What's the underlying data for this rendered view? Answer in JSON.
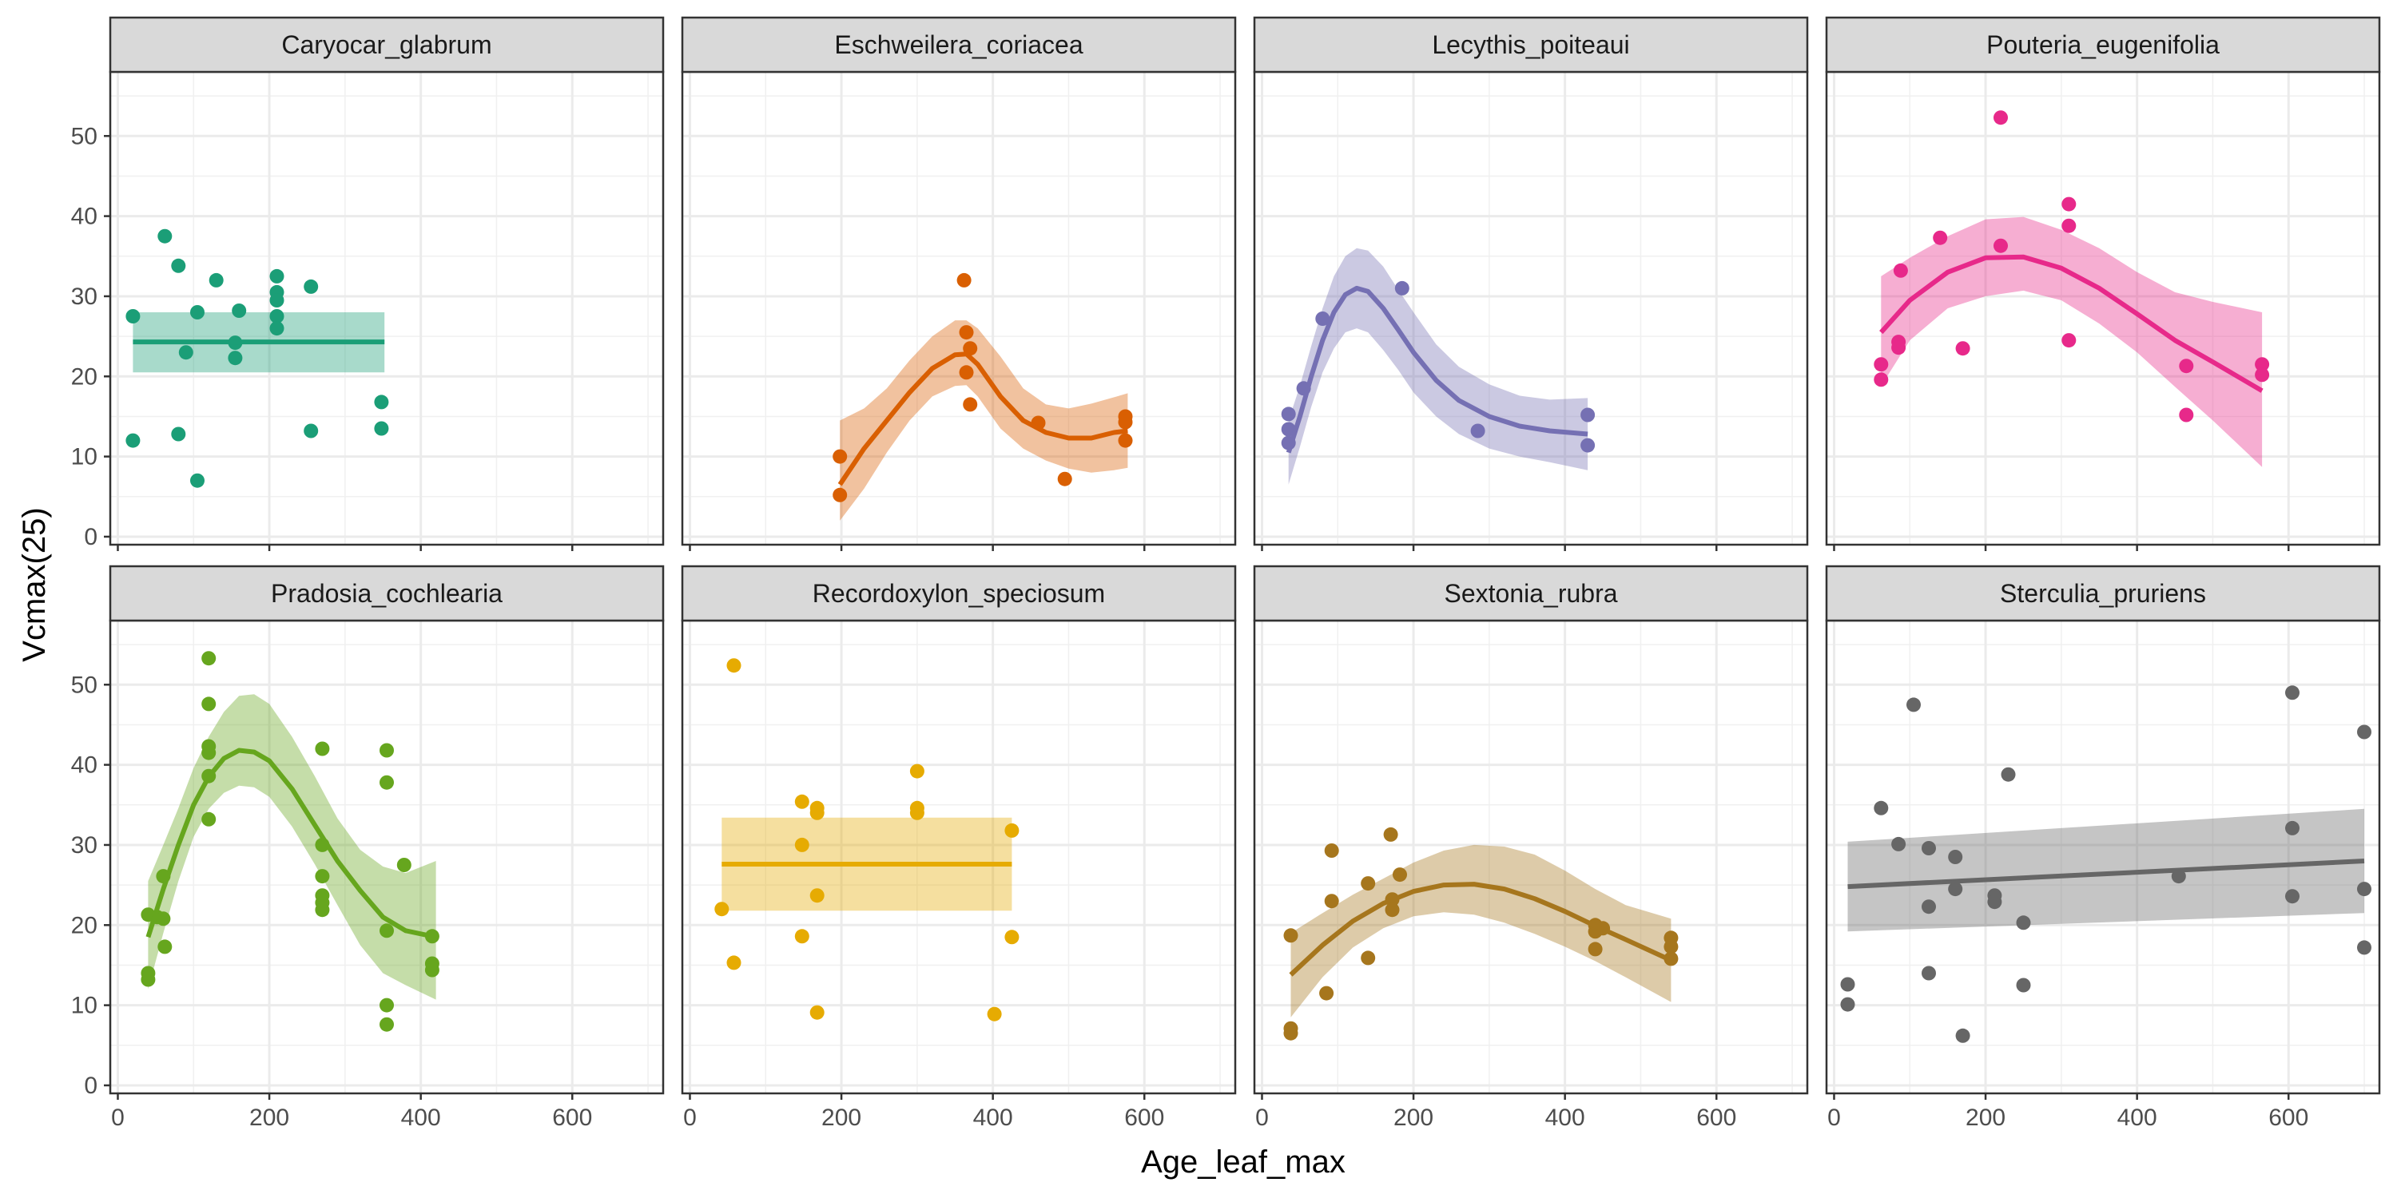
{
  "chart_data": {
    "type": "scatter",
    "layout": "facet_wrap 2x4",
    "xlabel": "Age_leaf_max",
    "ylabel": "Vcmax(25)",
    "xlim": [
      -10,
      720
    ],
    "ylim": [
      -1,
      58
    ],
    "x_ticks": [
      0,
      200,
      400,
      600
    ],
    "y_ticks": [
      0,
      10,
      20,
      30,
      40,
      50
    ],
    "grid": true,
    "legend": "none",
    "panels": [
      {
        "name": "Caryocar_glabrum",
        "color": "#1B9E77",
        "points": [
          [
            20,
            27.5
          ],
          [
            20,
            12
          ],
          [
            62,
            37.5
          ],
          [
            80,
            33.8
          ],
          [
            80,
            12.8
          ],
          [
            90,
            23
          ],
          [
            105,
            7
          ],
          [
            105,
            28
          ],
          [
            130,
            32
          ],
          [
            155,
            22.3
          ],
          [
            155,
            24.2
          ],
          [
            160,
            28.2
          ],
          [
            210,
            32.5
          ],
          [
            210,
            30.5
          ],
          [
            210,
            29.5
          ],
          [
            210,
            27.5
          ],
          [
            210,
            26
          ],
          [
            255,
            31.2
          ],
          [
            255,
            13.2
          ],
          [
            348,
            16.8
          ],
          [
            348,
            13.5
          ]
        ],
        "smooth": {
          "kind": "flat",
          "x": [
            20,
            352
          ],
          "y": [
            24.3,
            24.3
          ],
          "lo": [
            20.5,
            20.5
          ],
          "hi": [
            28,
            28
          ]
        }
      },
      {
        "name": "Eschweilera_coriacea",
        "color": "#D95F02",
        "points": [
          [
            198,
            10
          ],
          [
            198,
            5.2
          ],
          [
            362,
            32
          ],
          [
            365,
            25.5
          ],
          [
            365,
            20.5
          ],
          [
            370,
            23.5
          ],
          [
            370,
            16.5
          ],
          [
            460,
            14.2
          ],
          [
            495,
            7.2
          ],
          [
            575,
            15
          ],
          [
            575,
            14.3
          ],
          [
            575,
            12
          ]
        ],
        "smooth": {
          "kind": "curve",
          "x": [
            198,
            230,
            260,
            290,
            320,
            350,
            365,
            380,
            410,
            440,
            470,
            500,
            530,
            560,
            578
          ],
          "y": [
            6.5,
            11,
            14.5,
            18,
            21,
            22.7,
            22.8,
            21.5,
            17.5,
            14.5,
            13,
            12.3,
            12.3,
            13,
            13.2
          ],
          "lo": [
            2,
            6,
            10.5,
            14.5,
            17.5,
            18.8,
            18.9,
            17.5,
            13.5,
            11,
            9.5,
            8.5,
            8,
            8.3,
            8.6
          ],
          "hi": [
            14.5,
            16,
            18.5,
            22,
            25,
            27,
            27,
            26,
            22.5,
            18.5,
            16.5,
            16,
            16.6,
            17.4,
            17.9
          ]
        }
      },
      {
        "name": "Lecythis_poiteaui",
        "color": "#7570B3",
        "points": [
          [
            35,
            15.3
          ],
          [
            35,
            13.4
          ],
          [
            35,
            11.7
          ],
          [
            55,
            18.5
          ],
          [
            80,
            27.2
          ],
          [
            185,
            31
          ],
          [
            285,
            13.2
          ],
          [
            430,
            15.2
          ],
          [
            430,
            11.4
          ]
        ],
        "smooth": {
          "kind": "curve",
          "x": [
            35,
            50,
            65,
            80,
            95,
            110,
            125,
            140,
            160,
            180,
            200,
            230,
            260,
            300,
            340,
            380,
            430
          ],
          "y": [
            10.5,
            15,
            20,
            24.5,
            28,
            30.2,
            31,
            30.6,
            28.5,
            25.8,
            23,
            19.5,
            17,
            15,
            13.8,
            13.2,
            12.8
          ],
          "lo": [
            6.5,
            11.2,
            16.2,
            20.5,
            23.5,
            25.5,
            26,
            25.5,
            23.3,
            20.8,
            18,
            15,
            12.8,
            11,
            10,
            9.3,
            8.3
          ],
          "hi": [
            14.5,
            18.8,
            23.8,
            28.5,
            32.5,
            35,
            36,
            35.7,
            33.7,
            30.8,
            28,
            24,
            21.2,
            19,
            17.6,
            17.1,
            17.3
          ]
        }
      },
      {
        "name": "Pouteria_eugenifolia",
        "color": "#E7298A",
        "points": [
          [
            62,
            21.5
          ],
          [
            62,
            19.6
          ],
          [
            85,
            24.3
          ],
          [
            85,
            23.6
          ],
          [
            88,
            33.2
          ],
          [
            140,
            37.3
          ],
          [
            170,
            23.5
          ],
          [
            220,
            52.3
          ],
          [
            220,
            36.3
          ],
          [
            310,
            41.5
          ],
          [
            310,
            38.8
          ],
          [
            310,
            24.5
          ],
          [
            465,
            21.3
          ],
          [
            465,
            15.2
          ],
          [
            565,
            21.5
          ],
          [
            565,
            20.2
          ]
        ],
        "smooth": {
          "kind": "curve",
          "x": [
            62,
            100,
            150,
            200,
            250,
            300,
            350,
            400,
            450,
            500,
            565
          ],
          "y": [
            25.5,
            29.5,
            33,
            34.8,
            34.9,
            33.5,
            31,
            27.8,
            24.5,
            21.8,
            18.2
          ],
          "lo": [
            18.8,
            24.5,
            28.5,
            30,
            30.7,
            29.5,
            26.6,
            23,
            18.7,
            14.5,
            8.7
          ],
          "hi": [
            32.5,
            34.8,
            37.5,
            39.6,
            39.9,
            38.3,
            36,
            33,
            30.5,
            29.3,
            28
          ]
        }
      },
      {
        "name": "Pradosia_cochlearia",
        "color": "#66A61E",
        "points": [
          [
            40,
            21.3
          ],
          [
            40,
            14
          ],
          [
            40,
            13.2
          ],
          [
            52,
            21
          ],
          [
            60,
            26.1
          ],
          [
            60,
            20.8
          ],
          [
            62,
            17.3
          ],
          [
            120,
            53.3
          ],
          [
            120,
            47.6
          ],
          [
            120,
            42.3
          ],
          [
            120,
            41.5
          ],
          [
            120,
            38.6
          ],
          [
            120,
            33.2
          ],
          [
            270,
            42
          ],
          [
            270,
            30
          ],
          [
            270,
            26.1
          ],
          [
            270,
            23.7
          ],
          [
            270,
            22.8
          ],
          [
            270,
            21.9
          ],
          [
            355,
            41.8
          ],
          [
            355,
            37.8
          ],
          [
            355,
            19.3
          ],
          [
            355,
            10
          ],
          [
            355,
            7.6
          ],
          [
            378,
            27.5
          ],
          [
            415,
            18.6
          ],
          [
            415,
            15.2
          ],
          [
            415,
            14.4
          ]
        ],
        "smooth": {
          "kind": "curve",
          "x": [
            40,
            60,
            80,
            100,
            120,
            140,
            160,
            180,
            200,
            230,
            260,
            290,
            320,
            350,
            380,
            420
          ],
          "y": [
            18.5,
            24.5,
            30,
            35,
            38.5,
            40.8,
            41.8,
            41.6,
            40.5,
            37,
            32.5,
            28,
            24.3,
            21,
            19.3,
            18.5
          ],
          "lo": [
            12,
            19,
            25.5,
            31,
            34.5,
            36.5,
            37.4,
            37.2,
            36,
            32.3,
            27.6,
            22.5,
            17.5,
            14,
            12.5,
            10.7
          ],
          "hi": [
            25.5,
            30,
            34.6,
            39.6,
            43.5,
            46.6,
            48.6,
            48.8,
            47.6,
            43.5,
            38.6,
            33.3,
            29.4,
            27.3,
            26.5,
            28
          ]
        }
      },
      {
        "name": "Recordoxylon_speciosum",
        "color": "#E6AB02",
        "points": [
          [
            42,
            22
          ],
          [
            58,
            52.4
          ],
          [
            58,
            15.3
          ],
          [
            148,
            35.4
          ],
          [
            148,
            30
          ],
          [
            148,
            18.6
          ],
          [
            168,
            34.6
          ],
          [
            168,
            34
          ],
          [
            168,
            23.7
          ],
          [
            168,
            9.1
          ],
          [
            300,
            39.2
          ],
          [
            300,
            34.6
          ],
          [
            300,
            34
          ],
          [
            402,
            8.9
          ],
          [
            425,
            31.8
          ],
          [
            425,
            18.5
          ]
        ],
        "smooth": {
          "kind": "flat",
          "x": [
            42,
            425
          ],
          "y": [
            27.6,
            27.6
          ],
          "lo": [
            21.8,
            21.8
          ],
          "hi": [
            33.4,
            33.4
          ]
        }
      },
      {
        "name": "Sextonia_rubra",
        "color": "#A6761D",
        "points": [
          [
            38,
            18.7
          ],
          [
            38,
            7.1
          ],
          [
            38,
            6.5
          ],
          [
            85,
            11.5
          ],
          [
            92,
            29.3
          ],
          [
            92,
            23
          ],
          [
            140,
            25.2
          ],
          [
            140,
            15.9
          ],
          [
            170,
            31.3
          ],
          [
            172,
            21.9
          ],
          [
            172,
            23.2
          ],
          [
            182,
            26.3
          ],
          [
            440,
            20
          ],
          [
            440,
            19.2
          ],
          [
            440,
            17
          ],
          [
            450,
            19.6
          ],
          [
            540,
            18.4
          ],
          [
            540,
            17.3
          ],
          [
            540,
            15.8
          ]
        ],
        "smooth": {
          "kind": "curve",
          "x": [
            38,
            80,
            120,
            160,
            200,
            240,
            280,
            320,
            360,
            400,
            440,
            480,
            540
          ],
          "y": [
            13.8,
            17.5,
            20.5,
            22.7,
            24.2,
            25,
            25.1,
            24.5,
            23.3,
            21.7,
            19.9,
            18.2,
            15.6
          ],
          "lo": [
            8.5,
            13.5,
            17.2,
            19.6,
            21.1,
            21.6,
            21.3,
            20.3,
            18.9,
            17.3,
            15.5,
            13.5,
            10.4
          ],
          "hi": [
            19,
            21.5,
            23.8,
            25.8,
            27.8,
            29.3,
            30,
            29.8,
            28.8,
            26.8,
            24.5,
            22.5,
            20.8
          ]
        }
      },
      {
        "name": "Sterculia_pruriens",
        "color": "#666666",
        "points": [
          [
            18,
            12.6
          ],
          [
            18,
            10.1
          ],
          [
            62,
            34.6
          ],
          [
            85,
            30.1
          ],
          [
            105,
            47.5
          ],
          [
            125,
            29.6
          ],
          [
            125,
            22.3
          ],
          [
            125,
            14
          ],
          [
            160,
            28.5
          ],
          [
            160,
            24.5
          ],
          [
            212,
            23.7
          ],
          [
            212,
            22.9
          ],
          [
            230,
            38.8
          ],
          [
            250,
            20.3
          ],
          [
            250,
            12.5
          ],
          [
            455,
            26.1
          ],
          [
            605,
            49
          ],
          [
            605,
            32.1
          ],
          [
            605,
            23.6
          ],
          [
            700,
            44.1
          ],
          [
            700,
            24.5
          ],
          [
            700,
            17.2
          ],
          [
            170,
            6.2
          ]
        ],
        "smooth": {
          "kind": "line",
          "x": [
            18,
            700
          ],
          "y": [
            24.8,
            28
          ],
          "lo": [
            19.2,
            21.5
          ],
          "hi": [
            30.4,
            34.5
          ]
        }
      }
    ]
  }
}
